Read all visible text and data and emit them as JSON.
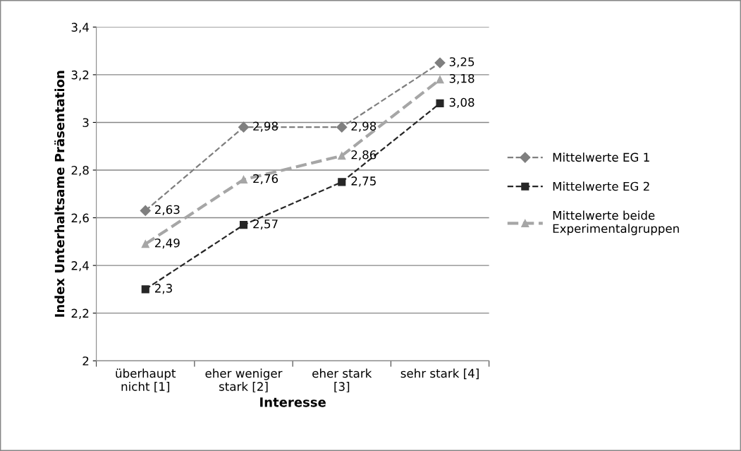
{
  "chart_data": {
    "type": "line",
    "xlabel": "Interesse",
    "ylabel": "Index Unterhaltsame Präsentation",
    "categories": [
      "überhaupt\nnicht [1]",
      "eher weniger\nstark [2]",
      "eher stark\n[3]",
      "sehr stark [4]"
    ],
    "series": [
      {
        "name": "Mittelwerte EG 1",
        "color": "#7f7f7f",
        "marker": "diamond",
        "line_style": "dashed",
        "values": [
          2.63,
          2.98,
          2.98,
          3.25
        ],
        "value_labels": [
          "2,63",
          "2,98",
          "2,98",
          "3,25"
        ]
      },
      {
        "name": "Mittelwerte EG 2",
        "color": "#262626",
        "marker": "square",
        "line_style": "dashed",
        "values": [
          2.3,
          2.57,
          2.75,
          3.08
        ],
        "value_labels": [
          "2,3",
          "2,57",
          "2,75",
          "3,08"
        ]
      },
      {
        "name": "Mittelwerte beide\nExperimentalgruppen",
        "color": "#a6a6a6",
        "marker": "triangle",
        "line_style": "dashed",
        "values": [
          2.49,
          2.76,
          2.86,
          3.18
        ],
        "value_labels": [
          "2,49",
          "2,76",
          "2,86",
          "3,18"
        ]
      }
    ],
    "ylim": [
      2,
      3.4
    ],
    "yticks": [
      2,
      {
        "value": 2.2,
        "label": "2,2"
      },
      {
        "value": 2.4,
        "label": "2,4"
      },
      {
        "value": 2.6,
        "label": "2,6"
      },
      {
        "value": 2.8,
        "label": "2,8"
      },
      3,
      {
        "value": 3.2,
        "label": "3,2"
      },
      {
        "value": 3.4,
        "label": "3,4"
      }
    ],
    "grid": "y",
    "legend": "right"
  }
}
